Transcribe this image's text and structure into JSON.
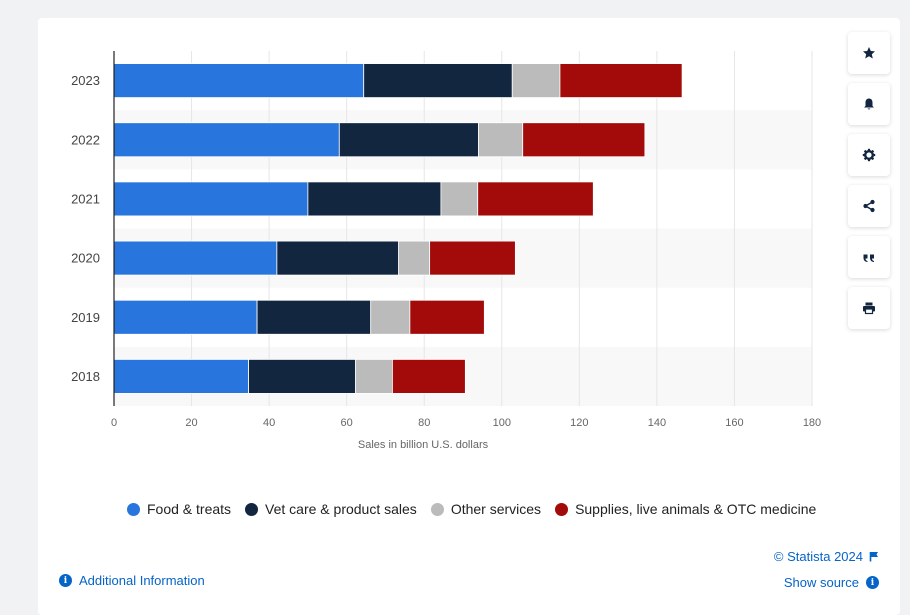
{
  "chart_data": {
    "type": "bar",
    "orientation": "horizontal",
    "stacked": true,
    "categories": [
      "2023",
      "2022",
      "2021",
      "2020",
      "2019",
      "2018"
    ],
    "series": [
      {
        "name": "Food & treats",
        "color": "#2876dd",
        "values": [
          64.4,
          58.1,
          50.0,
          42.0,
          36.9,
          34.7
        ]
      },
      {
        "name": "Vet care & product sales",
        "color": "#12263f",
        "values": [
          38.3,
          35.9,
          34.3,
          31.4,
          29.3,
          27.6
        ]
      },
      {
        "name": "Other services",
        "color": "#bbbbbb",
        "values": [
          12.3,
          11.4,
          9.5,
          8.0,
          10.1,
          9.5
        ]
      },
      {
        "name": "Supplies, live animals & OTC medicine",
        "color": "#a30b0b",
        "values": [
          31.5,
          31.5,
          29.8,
          22.1,
          19.2,
          18.8
        ]
      }
    ],
    "xlabel": "Sales in billion U.S. dollars",
    "xlim": [
      0,
      180
    ],
    "xticks": [
      "0",
      "20",
      "40",
      "60",
      "80",
      "100",
      "120",
      "140",
      "160",
      "180"
    ],
    "grid": true
  },
  "footer": {
    "additional_info": "Additional Information",
    "copyright": "© Statista 2024",
    "show_source": "Show source"
  },
  "toolbar": [
    "star-icon",
    "bell-icon",
    "gear-icon",
    "share-icon",
    "quote-icon",
    "print-icon"
  ]
}
